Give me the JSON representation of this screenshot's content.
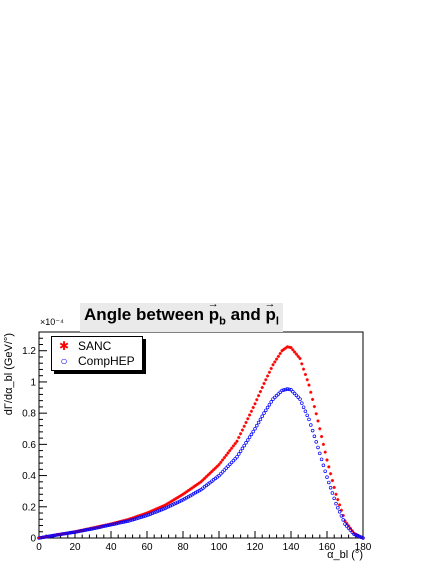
{
  "chart_data": {
    "type": "scatter",
    "title": "Angle between p_b and p_l",
    "title_parts": {
      "prefix": "Angle between ",
      "vec1": "p",
      "sub1": "b",
      "middle": " and ",
      "vec2": "p",
      "sub2": "l",
      "arrow": "→"
    },
    "xlabel": "α_bl (°)",
    "ylabel": "dΓ/dα_bl (GeV/°)",
    "y_exponent_label": "×10⁻⁴",
    "xlim": [
      0,
      180
    ],
    "ylim": [
      0,
      1.32
    ],
    "x_ticks": [
      0,
      20,
      40,
      60,
      80,
      100,
      120,
      140,
      160,
      180
    ],
    "y_ticks": [
      0,
      0.2,
      0.4,
      0.6,
      0.8,
      1.0,
      1.2
    ],
    "y_tick_labels": [
      "0",
      "0.2",
      "0.4",
      "0.6",
      "0.8",
      "1",
      "1.2"
    ],
    "legend_position": "top-left",
    "series": [
      {
        "name": "SANC",
        "marker": "star",
        "color": "#ff0000",
        "x": [
          0,
          10,
          20,
          30,
          40,
          50,
          60,
          70,
          80,
          90,
          100,
          110,
          120,
          125,
          130,
          135,
          138,
          140,
          145,
          150,
          155,
          160,
          165,
          170,
          175,
          180
        ],
        "y": [
          0,
          0.02,
          0.04,
          0.065,
          0.09,
          0.12,
          0.16,
          0.21,
          0.28,
          0.36,
          0.47,
          0.62,
          0.86,
          0.99,
          1.11,
          1.2,
          1.225,
          1.22,
          1.15,
          0.98,
          0.75,
          0.5,
          0.28,
          0.11,
          0.03,
          0
        ]
      },
      {
        "name": "CompHEP",
        "marker": "open-circle",
        "color": "#0000ff",
        "x": [
          0,
          10,
          20,
          30,
          40,
          50,
          60,
          70,
          80,
          90,
          100,
          110,
          120,
          125,
          130,
          135,
          138,
          140,
          145,
          150,
          155,
          160,
          165,
          170,
          175,
          180
        ],
        "y": [
          0,
          0.02,
          0.038,
          0.06,
          0.085,
          0.11,
          0.145,
          0.19,
          0.245,
          0.31,
          0.4,
          0.52,
          0.7,
          0.8,
          0.89,
          0.945,
          0.955,
          0.95,
          0.89,
          0.76,
          0.58,
          0.39,
          0.22,
          0.09,
          0.025,
          0
        ]
      }
    ]
  }
}
